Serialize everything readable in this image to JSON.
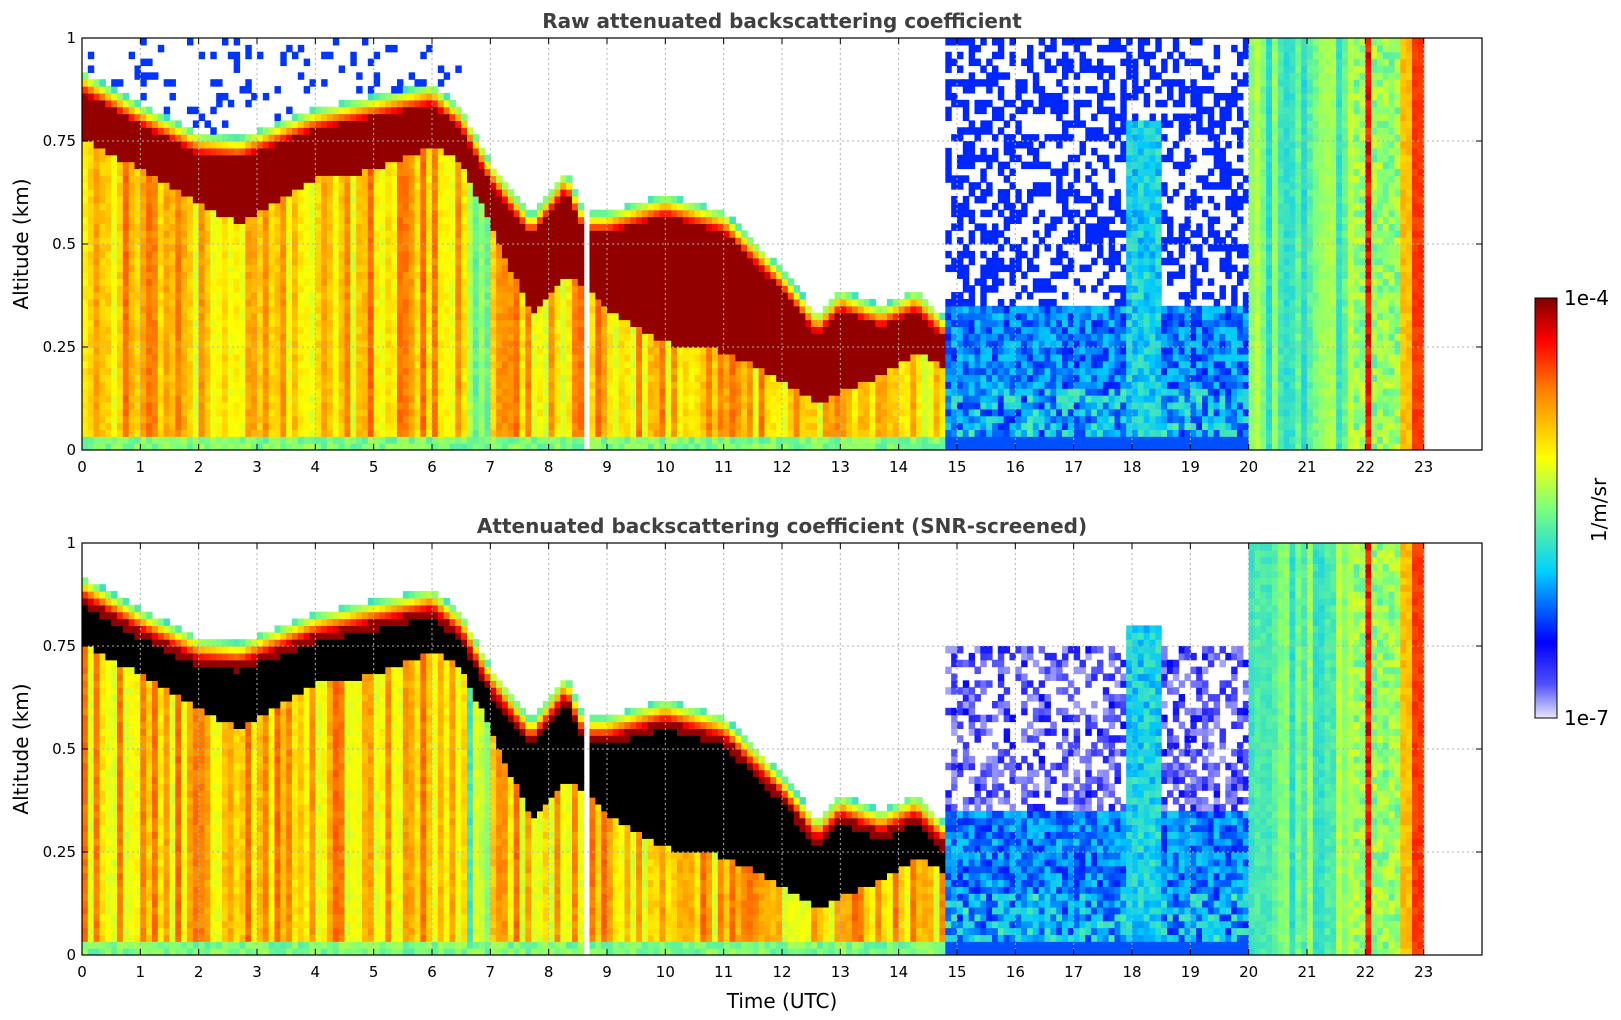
{
  "chart_data": [
    {
      "type": "heatmap",
      "title": "Raw attenuated backscattering coefficient",
      "xlabel": "",
      "ylabel": "Altitude (km)",
      "xlim": [
        0,
        24
      ],
      "ylim": [
        0,
        1
      ],
      "xticks": [
        "0",
        "1",
        "2",
        "3",
        "4",
        "5",
        "6",
        "7",
        "8",
        "9",
        "10",
        "11",
        "12",
        "13",
        "14",
        "15",
        "16",
        "17",
        "18",
        "19",
        "20",
        "21",
        "22",
        "23"
      ],
      "yticks": [
        "0",
        "0.25",
        "0.5",
        "0.75",
        "1"
      ],
      "grid": true,
      "layer_top_km": [
        {
          "t": 0,
          "top": 0.92,
          "base": 0.76
        },
        {
          "t": 1,
          "top": 0.84,
          "base": 0.68
        },
        {
          "t": 2,
          "top": 0.77,
          "base": 0.6
        },
        {
          "t": 2.7,
          "top": 0.76,
          "base": 0.55
        },
        {
          "t": 4,
          "top": 0.83,
          "base": 0.66
        },
        {
          "t": 5,
          "top": 0.86,
          "base": 0.68
        },
        {
          "t": 6,
          "top": 0.89,
          "base": 0.74
        },
        {
          "t": 6.5,
          "top": 0.83,
          "base": 0.7
        },
        {
          "t": 7,
          "top": 0.7,
          "base": 0.55
        },
        {
          "t": 7.7,
          "top": 0.57,
          "base": 0.33
        },
        {
          "t": 8.3,
          "top": 0.68,
          "base": 0.42
        },
        {
          "t": 8.6,
          "top": 0.58,
          "base": 0.4
        },
        {
          "t": 9,
          "top": 0.58,
          "base": 0.34
        },
        {
          "t": 10,
          "top": 0.62,
          "base": 0.26
        },
        {
          "t": 11,
          "top": 0.58,
          "base": 0.24
        },
        {
          "t": 12,
          "top": 0.44,
          "base": 0.17
        },
        {
          "t": 12.6,
          "top": 0.33,
          "base": 0.11
        },
        {
          "t": 13,
          "top": 0.39,
          "base": 0.14
        },
        {
          "t": 13.7,
          "top": 0.35,
          "base": 0.18
        },
        {
          "t": 14.3,
          "top": 0.39,
          "base": 0.24
        },
        {
          "t": 14.8,
          "top": 0.32,
          "base": 0.2
        }
      ],
      "colorbar": {
        "label": "1/m/sr",
        "min_label": "1e-7",
        "max_label": "1e-4",
        "scale": "log"
      }
    },
    {
      "type": "heatmap",
      "title": "Attenuated backscattering coefficient (SNR-screened)",
      "xlabel": "Time (UTC)",
      "ylabel": "Altitude (km)",
      "xlim": [
        0,
        24
      ],
      "ylim": [
        0,
        1
      ],
      "xticks": [
        "0",
        "1",
        "2",
        "3",
        "4",
        "5",
        "6",
        "7",
        "8",
        "9",
        "10",
        "11",
        "12",
        "13",
        "14",
        "15",
        "16",
        "17",
        "18",
        "19",
        "20",
        "21",
        "22",
        "23"
      ],
      "yticks": [
        "0",
        "0.25",
        "0.5",
        "0.75",
        "1"
      ],
      "grid": true,
      "saturated_color": "#000000"
    }
  ],
  "colors": {
    "colormap": [
      "#e6e6fa",
      "#0000ff",
      "#00c8ff",
      "#7dff7d",
      "#ffff00",
      "#ff8000",
      "#ff0000",
      "#800000"
    ],
    "screened_saturation": "#000000",
    "title_color": "#404040"
  }
}
